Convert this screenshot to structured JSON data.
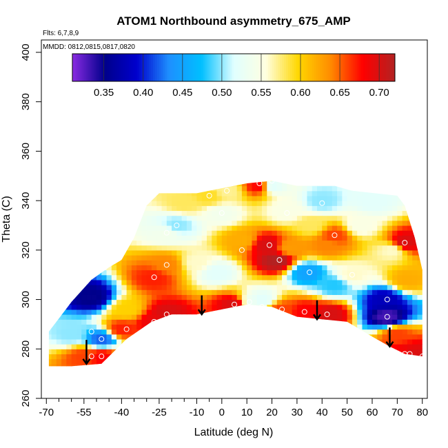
{
  "chart_data": {
    "type": "heatmap",
    "title": "ATOM1 Northbound asymmetry_675_AMP",
    "flights_label": "Flts: 6,7,8,9",
    "dates_label": "MMDD: 0812,0815,0817,0820",
    "xlabel": "Latitude (deg N)",
    "ylabel": "Theta (C)",
    "xlim": [
      -72,
      82
    ],
    "ylim": [
      260,
      405
    ],
    "x_ticks": [
      -70,
      -55,
      -40,
      -25,
      -10,
      0,
      10,
      20,
      30,
      40,
      50,
      60,
      70,
      80
    ],
    "x_ticks_labeled": [
      -70,
      -55,
      -40,
      -25,
      -10,
      0,
      10,
      20,
      30,
      40,
      50,
      60,
      70,
      80
    ],
    "x_tick_labels": [
      "-70",
      "-55",
      "-40",
      "-25",
      "-10",
      "0",
      "10",
      "20",
      "30",
      "40",
      "50",
      "60",
      "70",
      "80"
    ],
    "x_minor_ticks": [
      -65,
      -60,
      -50,
      -45,
      -35,
      -30,
      -20,
      -15,
      -5
    ],
    "y_ticks": [
      260,
      280,
      300,
      320,
      340,
      360,
      380,
      400
    ],
    "y_tick_labels": [
      "260",
      "280",
      "300",
      "320",
      "340",
      "360",
      "380",
      "400"
    ],
    "colorbar": {
      "min": 0.31,
      "max": 0.72,
      "ticks": [
        0.35,
        0.4,
        0.45,
        0.5,
        0.55,
        0.6,
        0.65,
        0.7
      ],
      "tick_labels": [
        "0.35",
        "0.40",
        "0.45",
        "0.50",
        "0.55",
        "0.60",
        "0.65",
        "0.70"
      ],
      "colors": [
        "#8a2be2",
        "#00008b",
        "#0000cd",
        "#1e90ff",
        "#00bfff",
        "#e0ffff",
        "#ffffe0",
        "#ffd700",
        "#ff8c00",
        "#ff0000",
        "#b22222"
      ]
    },
    "envelope_top": [
      [
        -69,
        287
      ],
      [
        -66,
        291
      ],
      [
        -60,
        299
      ],
      [
        -52,
        308
      ],
      [
        -45,
        313
      ],
      [
        -40,
        316
      ],
      [
        -35,
        325
      ],
      [
        -30,
        338
      ],
      [
        -25,
        343
      ],
      [
        -10,
        343
      ],
      [
        0,
        345
      ],
      [
        10,
        347
      ],
      [
        20,
        348
      ],
      [
        30,
        346
      ],
      [
        45,
        346
      ],
      [
        52,
        344
      ],
      [
        70,
        342
      ],
      [
        73,
        338
      ],
      [
        77,
        325
      ],
      [
        80,
        312
      ],
      [
        80,
        277
      ]
    ],
    "envelope_bottom": [
      [
        -69,
        273
      ],
      [
        -60,
        273
      ],
      [
        -48,
        274
      ],
      [
        -38,
        284
      ],
      [
        -28,
        291
      ],
      [
        -20,
        294
      ],
      [
        -10,
        294
      ],
      [
        0,
        296
      ],
      [
        10,
        298
      ],
      [
        20,
        297
      ],
      [
        30,
        293
      ],
      [
        40,
        292
      ],
      [
        50,
        291
      ],
      [
        60,
        285
      ],
      [
        67,
        281
      ],
      [
        73,
        278
      ],
      [
        80,
        277
      ]
    ],
    "field_points": [
      {
        "lat": -52,
        "theta": 301,
        "value": 0.35
      },
      {
        "lat": -48,
        "theta": 284,
        "value": 0.42
      },
      {
        "lat": -60,
        "theta": 286,
        "value": 0.5
      },
      {
        "lat": -55,
        "theta": 277,
        "value": 0.66
      },
      {
        "lat": -48,
        "theta": 277,
        "value": 0.68
      },
      {
        "lat": -40,
        "theta": 288,
        "value": 0.67
      },
      {
        "lat": -38,
        "theta": 296,
        "value": 0.6
      },
      {
        "lat": -27,
        "theta": 309,
        "value": 0.67
      },
      {
        "lat": -27,
        "theta": 291,
        "value": 0.69
      },
      {
        "lat": -22,
        "theta": 314,
        "value": 0.64
      },
      {
        "lat": -22,
        "theta": 294,
        "value": 0.7
      },
      {
        "lat": -22,
        "theta": 327,
        "value": 0.54
      },
      {
        "lat": -18,
        "theta": 330,
        "value": 0.5
      },
      {
        "lat": -15,
        "theta": 339,
        "value": 0.58
      },
      {
        "lat": -10,
        "theta": 315,
        "value": 0.56
      },
      {
        "lat": -5,
        "theta": 342,
        "value": 0.59
      },
      {
        "lat": -2,
        "theta": 311,
        "value": 0.52
      },
      {
        "lat": 0,
        "theta": 335,
        "value": 0.54
      },
      {
        "lat": 2,
        "theta": 344,
        "value": 0.57
      },
      {
        "lat": 5,
        "theta": 298,
        "value": 0.7
      },
      {
        "lat": 8,
        "theta": 324,
        "value": 0.62
      },
      {
        "lat": 12,
        "theta": 299,
        "value": 0.53
      },
      {
        "lat": 15,
        "theta": 346,
        "value": 0.68
      },
      {
        "lat": 16,
        "theta": 300,
        "value": 0.52
      },
      {
        "lat": 18,
        "theta": 322,
        "value": 0.7
      },
      {
        "lat": 20,
        "theta": 346,
        "value": 0.52
      },
      {
        "lat": 22,
        "theta": 316,
        "value": 0.72
      },
      {
        "lat": 24,
        "theta": 296,
        "value": 0.66
      },
      {
        "lat": 26,
        "theta": 336,
        "value": 0.55
      },
      {
        "lat": 27,
        "theta": 321,
        "value": 0.63
      },
      {
        "lat": 33,
        "theta": 295,
        "value": 0.68
      },
      {
        "lat": 34,
        "theta": 311,
        "value": 0.45
      },
      {
        "lat": 36,
        "theta": 330,
        "value": 0.58
      },
      {
        "lat": 40,
        "theta": 340,
        "value": 0.5
      },
      {
        "lat": 42,
        "theta": 322,
        "value": 0.64
      },
      {
        "lat": 43,
        "theta": 294,
        "value": 0.7
      },
      {
        "lat": 45,
        "theta": 326,
        "value": 0.66
      },
      {
        "lat": 45,
        "theta": 306,
        "value": 0.48
      },
      {
        "lat": 52,
        "theta": 310,
        "value": 0.56
      },
      {
        "lat": 55,
        "theta": 330,
        "value": 0.55
      },
      {
        "lat": 60,
        "theta": 340,
        "value": 0.52
      },
      {
        "lat": 65,
        "theta": 300,
        "value": 0.38
      },
      {
        "lat": 66,
        "theta": 293,
        "value": 0.33
      },
      {
        "lat": 68,
        "theta": 320,
        "value": 0.56
      },
      {
        "lat": 70,
        "theta": 286,
        "value": 0.66
      },
      {
        "lat": 73,
        "theta": 323,
        "value": 0.7
      },
      {
        "lat": 74,
        "theta": 308,
        "value": 0.62
      },
      {
        "lat": 73,
        "theta": 278,
        "value": 0.68
      },
      {
        "lat": 75,
        "theta": 278,
        "value": 0.7
      },
      {
        "lat": 80,
        "theta": 277,
        "value": 0.7
      }
    ],
    "sample_markers": [
      {
        "lat": -52,
        "theta": 287
      },
      {
        "lat": -48,
        "theta": 284
      },
      {
        "lat": -52,
        "theta": 277
      },
      {
        "lat": -48,
        "theta": 277
      },
      {
        "lat": -38,
        "theta": 288
      },
      {
        "lat": -27,
        "theta": 309
      },
      {
        "lat": -27,
        "theta": 291
      },
      {
        "lat": -22,
        "theta": 314
      },
      {
        "lat": -22,
        "theta": 294
      },
      {
        "lat": -22,
        "theta": 327
      },
      {
        "lat": -18,
        "theta": 330
      },
      {
        "lat": -5,
        "theta": 342
      },
      {
        "lat": 0,
        "theta": 335
      },
      {
        "lat": 2,
        "theta": 344
      },
      {
        "lat": 5,
        "theta": 298
      },
      {
        "lat": 8,
        "theta": 320
      },
      {
        "lat": 11,
        "theta": 299
      },
      {
        "lat": 15,
        "theta": 347
      },
      {
        "lat": 16,
        "theta": 297
      },
      {
        "lat": 19,
        "theta": 322
      },
      {
        "lat": 20,
        "theta": 348
      },
      {
        "lat": 23,
        "theta": 316
      },
      {
        "lat": 24,
        "theta": 296
      },
      {
        "lat": 26,
        "theta": 335
      },
      {
        "lat": 33,
        "theta": 295
      },
      {
        "lat": 35,
        "theta": 311
      },
      {
        "lat": 40,
        "theta": 339
      },
      {
        "lat": 42,
        "theta": 294
      },
      {
        "lat": 45,
        "theta": 326
      },
      {
        "lat": 52,
        "theta": 310
      },
      {
        "lat": 66,
        "theta": 300
      },
      {
        "lat": 66,
        "theta": 293
      },
      {
        "lat": 73,
        "theta": 323
      },
      {
        "lat": 73,
        "theta": 278
      },
      {
        "lat": 75,
        "theta": 278
      },
      {
        "lat": 80,
        "theta": 277
      }
    ],
    "tropopause_arrows": [
      {
        "lat": -54,
        "theta": 282,
        "theta_end": 274
      },
      {
        "lat": -8,
        "theta": 300,
        "theta_end": 294
      },
      {
        "lat": 38,
        "theta": 298,
        "theta_end": 292
      },
      {
        "lat": 67,
        "theta": 287,
        "theta_end": 281
      }
    ]
  }
}
